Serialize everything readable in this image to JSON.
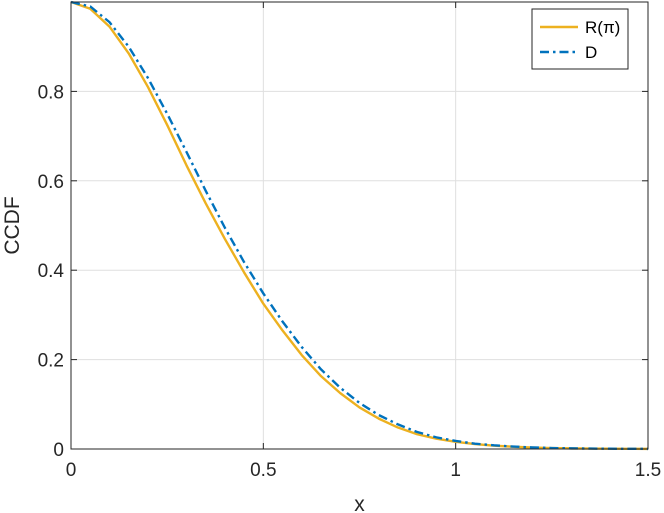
{
  "chart_data": {
    "type": "line",
    "xlabel": "x",
    "ylabel": "CCDF",
    "xlim": [
      0,
      1.5
    ],
    "ylim": [
      0,
      1
    ],
    "xticks": [
      0,
      0.5,
      1,
      1.5
    ],
    "xtick_labels": [
      "0",
      "0.5",
      "1",
      "1.5"
    ],
    "yticks": [
      0,
      0.2,
      0.4,
      0.6,
      0.8
    ],
    "ytick_labels": [
      "0",
      "0.2",
      "0.4",
      "0.6",
      "0.8"
    ],
    "grid": true,
    "legend_position": "top-right",
    "x": [
      0,
      0.05,
      0.1,
      0.15,
      0.2,
      0.25,
      0.3,
      0.35,
      0.4,
      0.45,
      0.5,
      0.55,
      0.6,
      0.65,
      0.7,
      0.75,
      0.8,
      0.85,
      0.9,
      0.95,
      1.0,
      1.05,
      1.1,
      1.15,
      1.2,
      1.25,
      1.3,
      1.35,
      1.4,
      1.45,
      1.5
    ],
    "series": [
      {
        "name": "R(π)",
        "color": "#EDB120",
        "style": "solid",
        "values": [
          1.0,
          0.985,
          0.945,
          0.885,
          0.81,
          0.725,
          0.635,
          0.55,
          0.47,
          0.395,
          0.325,
          0.265,
          0.21,
          0.163,
          0.125,
          0.093,
          0.068,
          0.048,
          0.033,
          0.023,
          0.016,
          0.011,
          0.0075,
          0.005,
          0.0033,
          0.0021,
          0.0014,
          0.0009,
          0.0006,
          0.0004,
          0.0003
        ]
      },
      {
        "name": "D",
        "color": "#0072BD",
        "style": "dashdot",
        "values": [
          1.0,
          0.99,
          0.955,
          0.9,
          0.83,
          0.75,
          0.665,
          0.578,
          0.495,
          0.418,
          0.348,
          0.285,
          0.228,
          0.178,
          0.137,
          0.103,
          0.076,
          0.055,
          0.038,
          0.026,
          0.018,
          0.012,
          0.0082,
          0.0054,
          0.0035,
          0.0022,
          0.0014,
          0.0009,
          0.0006,
          0.0004,
          0.0003
        ]
      }
    ]
  }
}
